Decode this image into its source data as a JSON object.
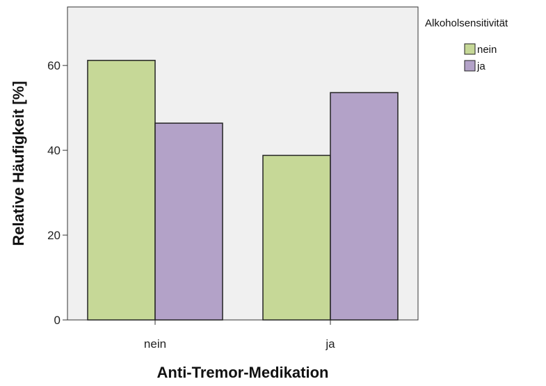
{
  "chart_data": {
    "type": "bar",
    "categories": [
      "nein",
      "ja"
    ],
    "series": [
      {
        "name": "nein",
        "color": "#c6d897",
        "values": [
          61.2,
          38.8
        ]
      },
      {
        "name": "ja",
        "color": "#b3a2c8",
        "values": [
          46.4,
          53.6
        ]
      }
    ],
    "xlabel": "Anti-Tremor-Medikation",
    "ylabel": "Relative Häufigkeit [%]",
    "ylim": [
      0,
      73.8
    ],
    "yticks": [
      0,
      20,
      40,
      60
    ],
    "legend_title": "Alkoholsensitivität",
    "legend_position": "right",
    "plot_background": "#f0f0f0",
    "grid": false
  }
}
